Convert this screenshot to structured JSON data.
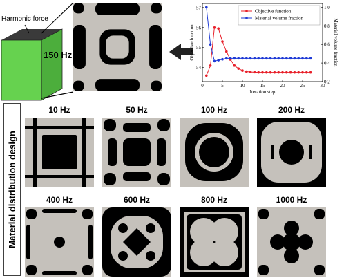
{
  "annotations": {
    "force": "Harmonic force",
    "frequency": "150 Hz"
  },
  "chart_data": {
    "type": "line",
    "x": [
      1,
      2,
      3,
      4,
      5,
      6,
      7,
      8,
      9,
      10,
      11,
      12,
      13,
      14,
      15,
      16,
      17,
      18,
      19,
      20,
      21,
      22,
      23,
      24,
      25,
      26,
      27
    ],
    "series": [
      {
        "name": "Objective function",
        "color": "#e8202a",
        "values": [
          53.6,
          54.1,
          56.0,
          55.95,
          55.3,
          54.8,
          54.4,
          54.1,
          53.95,
          53.85,
          53.8,
          53.78,
          53.77,
          53.76,
          53.76,
          53.76,
          53.76,
          53.76,
          53.76,
          53.76,
          53.76,
          53.76,
          53.76,
          53.76,
          53.76,
          53.76,
          53.76
        ]
      },
      {
        "name": "Material volume fraction",
        "color": "#1f3bd6",
        "axis": "y2",
        "values": [
          1.0,
          0.6,
          0.42,
          0.43,
          0.44,
          0.45,
          0.45,
          0.45,
          0.45,
          0.45,
          0.45,
          0.45,
          0.45,
          0.45,
          0.45,
          0.45,
          0.45,
          0.45,
          0.45,
          0.45,
          0.45,
          0.45,
          0.45,
          0.45,
          0.45,
          0.45,
          0.45
        ]
      }
    ],
    "x_label": "Iteration step",
    "y_label": "Objective function",
    "y2_label": "Material volume fraction",
    "xlim": [
      0,
      30
    ],
    "xticks": [
      0,
      5,
      10,
      15,
      20,
      25,
      30
    ],
    "ylim": [
      53.3,
      57.2
    ],
    "yticks": [
      54,
      55,
      56,
      57
    ],
    "y2lim": [
      0.2,
      1.04
    ],
    "y2ticks": [
      {
        "value": 0.2,
        "label": "0.2"
      },
      {
        "value": 0.4,
        "label": "0.4"
      },
      {
        "value": 0.6,
        "label": "0.6"
      },
      {
        "value": 0.8,
        "label": "0.8"
      },
      {
        "value": 1.0,
        "label": "1.0"
      }
    ],
    "legend": "upper right"
  },
  "panel": {
    "title": "Material distribution design",
    "frequencies": [
      "10 Hz",
      "50 Hz",
      "100 Hz",
      "200 Hz",
      "400 Hz",
      "600 Hz",
      "800 Hz",
      "1000 Hz"
    ]
  }
}
